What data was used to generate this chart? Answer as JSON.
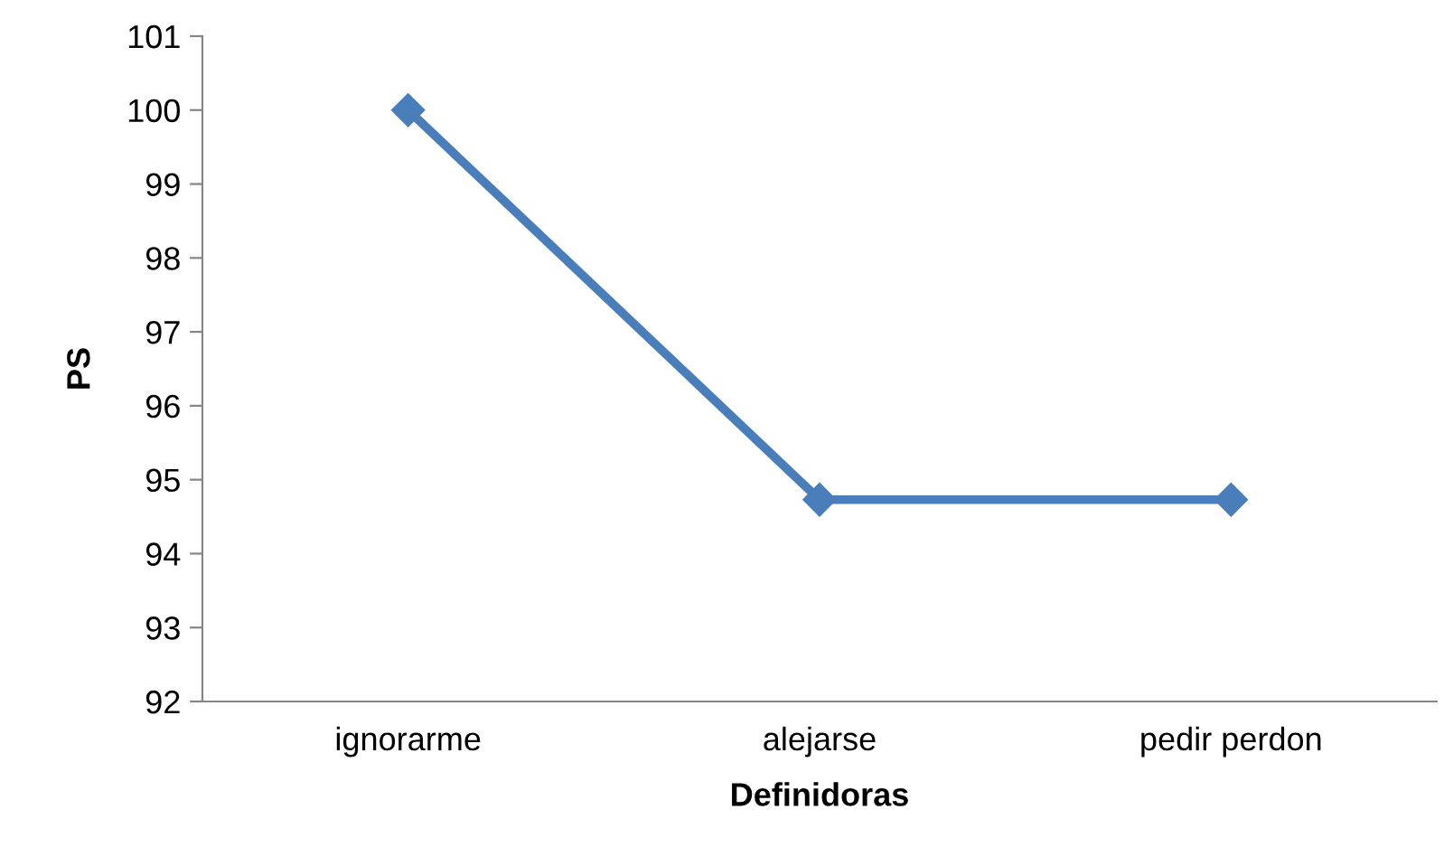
{
  "chart_data": {
    "type": "line",
    "xlabel": "Definidoras",
    "ylabel": "PS",
    "categories": [
      "ignorarme",
      "alejarse",
      "pedir perdon"
    ],
    "series": [
      {
        "color": "#4a7ebb",
        "values": [
          100,
          94.73,
          94.73
        ]
      }
    ],
    "ylim": [
      92,
      101
    ],
    "yticks": [
      92,
      93,
      94,
      95,
      96,
      97,
      98,
      99,
      100,
      101
    ],
    "marker": "diamond",
    "line_style": "solid",
    "grid": false,
    "legend": false
  }
}
